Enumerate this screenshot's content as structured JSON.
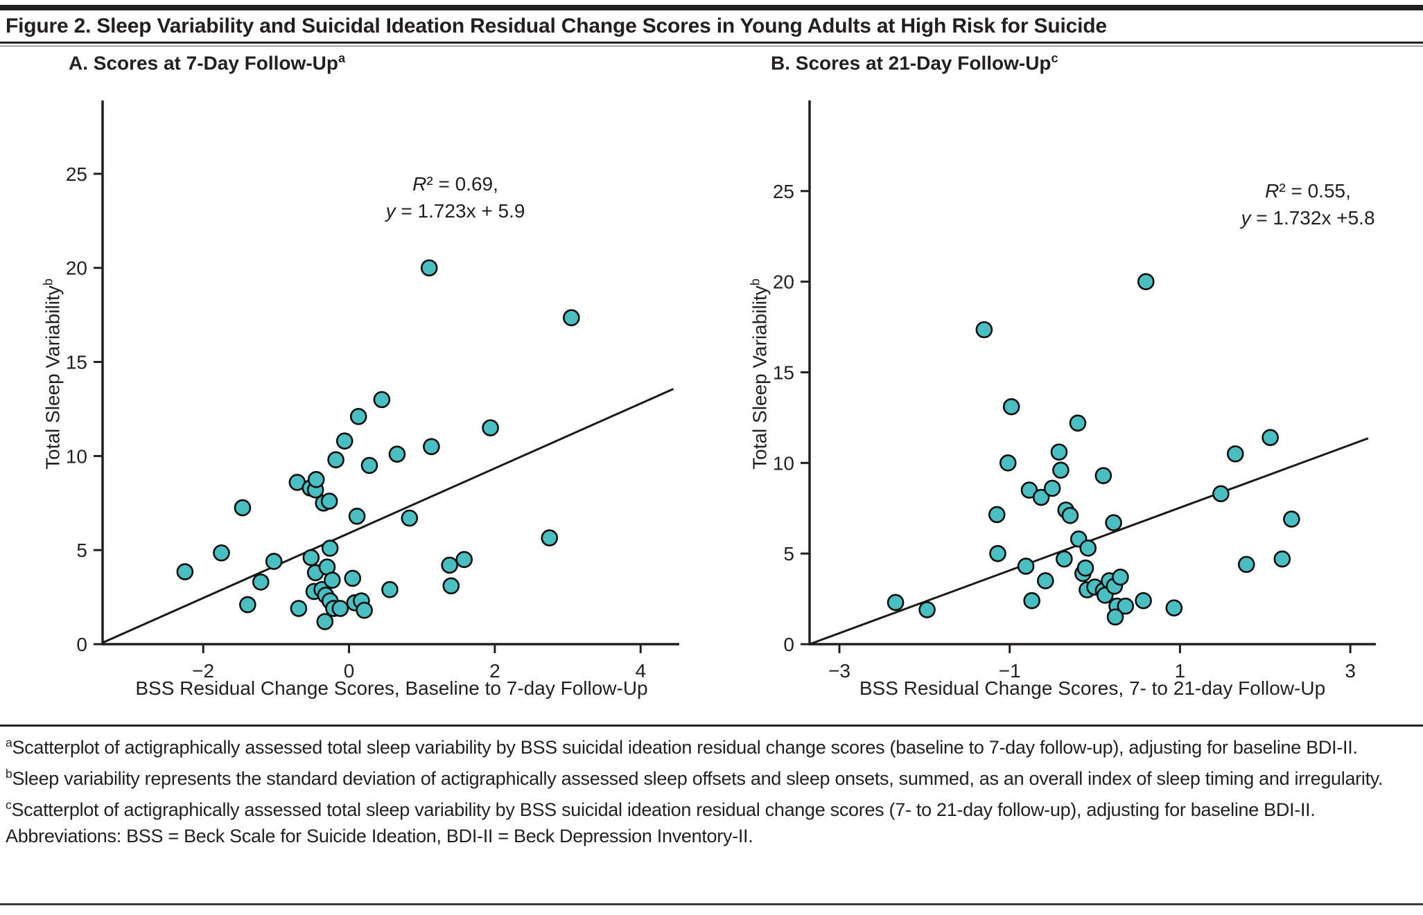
{
  "figure": {
    "title": "Figure 2. Sleep Variability and Suicidal Ideation Residual Change Scores in Young Adults at High Risk for Suicide"
  },
  "colors": {
    "marker_fill": "#4abfc1",
    "marker_stroke": "#0d0d0d",
    "axis": "#231f20",
    "text": "#231f20",
    "trendline": "#1a1a1a"
  },
  "chart_data": [
    {
      "type": "scatter",
      "panel_label": "A",
      "title": "A. Scores at 7-Day Follow-Up",
      "title_sup": "a",
      "xlabel": "BSS Residual Change Scores, Baseline to 7-day Follow-Up",
      "ylabel": "Total Sleep Variability",
      "ylabel_sup": "b",
      "annotation_lines": [
        "R² = 0.69,",
        "y = 1.723x + 5.9"
      ],
      "x_ticks": [
        -2,
        0,
        2,
        4
      ],
      "y_ticks": [
        0,
        5,
        10,
        15,
        20,
        25
      ],
      "xlim": [
        -3.38,
        4.53
      ],
      "ylim": [
        0,
        28.9
      ],
      "grid": false,
      "legend": null,
      "trendline": {
        "slope": 1.723,
        "intercept": 5.9,
        "x_start": -3.38,
        "x_end": 4.45
      },
      "points": [
        [
          -2.25,
          3.85
        ],
        [
          -1.75,
          4.85
        ],
        [
          -1.46,
          7.25
        ],
        [
          -1.39,
          2.1
        ],
        [
          -1.21,
          3.3
        ],
        [
          -1.03,
          4.4
        ],
        [
          -0.71,
          8.6
        ],
        [
          -0.69,
          1.9
        ],
        [
          -0.53,
          8.3
        ],
        [
          -0.46,
          8.2
        ],
        [
          -0.45,
          8.75
        ],
        [
          -0.52,
          4.6
        ],
        [
          -0.48,
          2.8
        ],
        [
          -0.46,
          3.8
        ],
        [
          -0.37,
          2.9
        ],
        [
          -0.35,
          7.5
        ],
        [
          -0.33,
          1.2
        ],
        [
          -0.32,
          2.6
        ],
        [
          -0.3,
          4.1
        ],
        [
          -0.27,
          7.6
        ],
        [
          -0.26,
          5.1
        ],
        [
          -0.26,
          2.3
        ],
        [
          -0.23,
          3.4
        ],
        [
          -0.21,
          1.9
        ],
        [
          -0.18,
          9.8
        ],
        [
          -0.12,
          1.9
        ],
        [
          -0.06,
          10.8
        ],
        [
          0.05,
          3.5
        ],
        [
          0.08,
          2.2
        ],
        [
          0.11,
          6.8
        ],
        [
          0.13,
          12.1
        ],
        [
          0.17,
          2.3
        ],
        [
          0.21,
          1.8
        ],
        [
          0.28,
          9.5
        ],
        [
          0.45,
          13.0
        ],
        [
          0.56,
          2.9
        ],
        [
          0.66,
          10.1
        ],
        [
          0.83,
          6.7
        ],
        [
          1.1,
          20.0
        ],
        [
          1.13,
          10.5
        ],
        [
          1.38,
          4.2
        ],
        [
          1.4,
          3.1
        ],
        [
          1.58,
          4.5
        ],
        [
          1.94,
          11.5
        ],
        [
          2.75,
          5.65
        ],
        [
          3.05,
          17.35
        ]
      ]
    },
    {
      "type": "scatter",
      "panel_label": "B",
      "title": "B. Scores at 21-Day Follow-Up",
      "title_sup": "c",
      "xlabel": "BSS Residual Change Scores, 7- to 21-day Follow-Up",
      "ylabel": "Total Sleep Variability",
      "ylabel_sup": "b",
      "annotation_lines": [
        "R² = 0.55,",
        "y = 1.732x +5.8"
      ],
      "x_ticks": [
        -3,
        -1,
        1,
        3
      ],
      "y_ticks": [
        0,
        5,
        10,
        15,
        20,
        25
      ],
      "xlim": [
        -3.35,
        3.3
      ],
      "ylim": [
        0,
        30
      ],
      "grid": false,
      "legend": null,
      "trendline": {
        "slope": 1.732,
        "intercept": 5.8,
        "x_start": -3.35,
        "x_end": 3.21
      },
      "points": [
        [
          -2.34,
          2.3
        ],
        [
          -1.97,
          1.9
        ],
        [
          -1.3,
          17.35
        ],
        [
          -1.15,
          7.15
        ],
        [
          -1.14,
          5.0
        ],
        [
          -1.02,
          10.0
        ],
        [
          -0.98,
          13.1
        ],
        [
          -0.81,
          4.3
        ],
        [
          -0.77,
          8.5
        ],
        [
          -0.74,
          2.4
        ],
        [
          -0.63,
          8.1
        ],
        [
          -0.58,
          3.5
        ],
        [
          -0.5,
          8.6
        ],
        [
          -0.42,
          10.6
        ],
        [
          -0.4,
          9.6
        ],
        [
          -0.36,
          4.7
        ],
        [
          -0.34,
          7.4
        ],
        [
          -0.29,
          7.1
        ],
        [
          -0.2,
          12.2
        ],
        [
          -0.19,
          5.8
        ],
        [
          -0.14,
          3.9
        ],
        [
          -0.11,
          4.2
        ],
        [
          -0.09,
          3.0
        ],
        [
          -0.08,
          5.3
        ],
        [
          0.0,
          3.15
        ],
        [
          0.1,
          9.3
        ],
        [
          0.1,
          2.95
        ],
        [
          0.12,
          2.7
        ],
        [
          0.17,
          3.5
        ],
        [
          0.22,
          6.7
        ],
        [
          0.23,
          3.2
        ],
        [
          0.26,
          2.1
        ],
        [
          0.3,
          3.7
        ],
        [
          0.36,
          2.1
        ],
        [
          0.24,
          1.5
        ],
        [
          0.57,
          2.4
        ],
        [
          0.6,
          20.0
        ],
        [
          0.93,
          2.0
        ],
        [
          1.48,
          8.3
        ],
        [
          1.65,
          10.5
        ],
        [
          1.78,
          4.4
        ],
        [
          2.06,
          11.4
        ],
        [
          2.2,
          4.7
        ],
        [
          2.31,
          6.9
        ]
      ]
    }
  ],
  "footnotes": [
    {
      "marker": "a",
      "text": "Scatterplot of actigraphically assessed total sleep variability by BSS suicidal ideation residual change scores (baseline to 7-day follow-up), adjusting for baseline BDI-II."
    },
    {
      "marker": "b",
      "text": "Sleep variability represents the standard deviation of actigraphically assessed sleep offsets and sleep onsets, summed, as an overall index of sleep timing and irregularity."
    },
    {
      "marker": "c",
      "text": "Scatterplot of actigraphically assessed total sleep variability by BSS suicidal ideation residual change scores (7- to 21-day follow-up), adjusting for baseline BDI-II."
    }
  ],
  "abbreviations_line": "Abbreviations: BSS = Beck Scale for Suicide Ideation, BDI-II = Beck Depression Inventory-II."
}
